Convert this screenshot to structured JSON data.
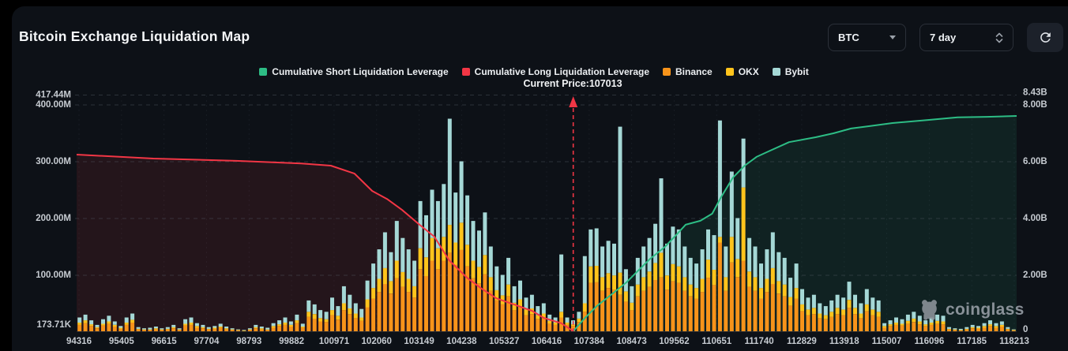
{
  "header": {
    "title": "Bitcoin Exchange Liquidation Map",
    "symbol_select": "BTC",
    "timeframe_select": "7 day"
  },
  "legend": [
    {
      "label": "Cumulative Short Liquidation Leverage",
      "color": "#2dbd85"
    },
    {
      "label": "Cumulative Long Liquidation Leverage",
      "color": "#f23645"
    },
    {
      "label": "Binance",
      "color": "#f7931a"
    },
    {
      "label": "OKX",
      "color": "#ffc41c"
    },
    {
      "label": "Bybit",
      "color": "#a5d8d6"
    }
  ],
  "annotation": {
    "current_price_label": "Current Price:107013",
    "current_price": 107013
  },
  "watermark": {
    "text": "coinglass"
  },
  "chart_data": {
    "type": "bar",
    "subtype": "stacked bars with cumulative line overlays",
    "title": "Bitcoin Exchange Liquidation Map",
    "x_ticks": [
      "94316",
      "95405",
      "96615",
      "97704",
      "98793",
      "99882",
      "100971",
      "102060",
      "103149",
      "104238",
      "105327",
      "106416",
      "107384",
      "108473",
      "109562",
      "110651",
      "111740",
      "112829",
      "113918",
      "115007",
      "116096",
      "117185",
      "118213"
    ],
    "y_axis_left": {
      "unit": "M (liquidation leverage per price level)",
      "labels": [
        {
          "label": "417.44M",
          "M": 417.44
        },
        {
          "label": "400.00M",
          "M": 400
        },
        {
          "label": "300.00M",
          "M": 300
        },
        {
          "label": "200.00M",
          "M": 200
        },
        {
          "label": "100.00M",
          "M": 100
        },
        {
          "label": "173.71K",
          "M": 0.17
        }
      ],
      "gridlines_M": [
        417.44,
        400,
        300,
        200,
        100
      ]
    },
    "y_axis_right": {
      "unit": "B (cumulative liquidation leverage)",
      "labels": [
        {
          "label": "8.43B",
          "B": 8.43
        },
        {
          "label": "8.00B",
          "B": 8
        },
        {
          "label": "6.00B",
          "B": 6
        },
        {
          "label": "4.00B",
          "B": 4
        },
        {
          "label": "2.00B",
          "B": 2
        },
        {
          "label": "0",
          "B": 0
        }
      ]
    },
    "bar_series_order": [
      "Binance",
      "OKX",
      "Bybit"
    ],
    "bars_M": [
      [
        12,
        4,
        9
      ],
      [
        15,
        5,
        10
      ],
      [
        10,
        3,
        7
      ],
      [
        6,
        2,
        4
      ],
      [
        11,
        3,
        8
      ],
      [
        14,
        4,
        10
      ],
      [
        9,
        3,
        6
      ],
      [
        5,
        2,
        3
      ],
      [
        12,
        4,
        9
      ],
      [
        16,
        5,
        11
      ],
      [
        4,
        1,
        3
      ],
      [
        3,
        1,
        2
      ],
      [
        3,
        1,
        3
      ],
      [
        4,
        2,
        3
      ],
      [
        3,
        1,
        2
      ],
      [
        4,
        1,
        3
      ],
      [
        6,
        2,
        4
      ],
      [
        3,
        1,
        2
      ],
      [
        11,
        3,
        8
      ],
      [
        12,
        4,
        9
      ],
      [
        7,
        3,
        5
      ],
      [
        6,
        2,
        4
      ],
      [
        4,
        1,
        3
      ],
      [
        5,
        2,
        3
      ],
      [
        7,
        2,
        5
      ],
      [
        4,
        2,
        3
      ],
      [
        3,
        1,
        2
      ],
      [
        2,
        1,
        1
      ],
      [
        1,
        1,
        1
      ],
      [
        3,
        1,
        2
      ],
      [
        6,
        2,
        4
      ],
      [
        4,
        2,
        3
      ],
      [
        3,
        1,
        3
      ],
      [
        7,
        3,
        5
      ],
      [
        10,
        3,
        7
      ],
      [
        12,
        4,
        9
      ],
      [
        9,
        3,
        6
      ],
      [
        15,
        5,
        10
      ],
      [
        7,
        2,
        5
      ],
      [
        26,
        9,
        20
      ],
      [
        23,
        8,
        17
      ],
      [
        18,
        6,
        14
      ],
      [
        17,
        5,
        13
      ],
      [
        29,
        9,
        22
      ],
      [
        21,
        7,
        17
      ],
      [
        38,
        12,
        30
      ],
      [
        31,
        10,
        24
      ],
      [
        24,
        8,
        18
      ],
      [
        19,
        6,
        15
      ],
      [
        43,
        14,
        33
      ],
      [
        58,
        19,
        43
      ],
      [
        70,
        23,
        52
      ],
      [
        84,
        28,
        63
      ],
      [
        67,
        22,
        51
      ],
      [
        94,
        31,
        70
      ],
      [
        79,
        26,
        60
      ],
      [
        70,
        23,
        52
      ],
      [
        60,
        20,
        45
      ],
      [
        110,
        37,
        83
      ],
      [
        98,
        33,
        74
      ],
      [
        125,
        40,
        85
      ],
      [
        110,
        37,
        83
      ],
      [
        125,
        42,
        93
      ],
      [
        139,
        49,
        187
      ],
      [
        118,
        39,
        88
      ],
      [
        144,
        48,
        108
      ],
      [
        115,
        38,
        87
      ],
      [
        94,
        31,
        70
      ],
      [
        85,
        29,
        64
      ],
      [
        101,
        34,
        75
      ],
      [
        72,
        24,
        54
      ],
      [
        55,
        18,
        42
      ],
      [
        48,
        16,
        36
      ],
      [
        62,
        21,
        47
      ],
      [
        38,
        13,
        29
      ],
      [
        43,
        14,
        33
      ],
      [
        29,
        10,
        21
      ],
      [
        31,
        10,
        24
      ],
      [
        22,
        7,
        16
      ],
      [
        24,
        8,
        18
      ],
      [
        14,
        5,
        11
      ],
      [
        12,
        4,
        9
      ],
      [
        25,
        10,
        101
      ],
      [
        12,
        4,
        9
      ],
      [
        10,
        3,
        7
      ],
      [
        17,
        6,
        12
      ],
      [
        35,
        15,
        83
      ],
      [
        86,
        29,
        65
      ],
      [
        87,
        29,
        66
      ],
      [
        72,
        24,
        54
      ],
      [
        77,
        26,
        57
      ],
      [
        74,
        25,
        56
      ],
      [
        65,
        39,
        257
      ],
      [
        53,
        18,
        39
      ],
      [
        38,
        13,
        29
      ],
      [
        62,
        21,
        47
      ],
      [
        72,
        24,
        54
      ],
      [
        79,
        27,
        59
      ],
      [
        91,
        30,
        69
      ],
      [
        96,
        43,
        131
      ],
      [
        74,
        25,
        56
      ],
      [
        89,
        30,
        66
      ],
      [
        86,
        29,
        65
      ],
      [
        72,
        24,
        54
      ],
      [
        62,
        21,
        47
      ],
      [
        58,
        19,
        43
      ],
      [
        70,
        23,
        52
      ],
      [
        95,
        32,
        53
      ],
      [
        82,
        27,
        61
      ],
      [
        157,
        10,
        205
      ],
      [
        72,
        24,
        54
      ],
      [
        122,
        45,
        115
      ],
      [
        96,
        32,
        72
      ],
      [
        125,
        129,
        86
      ],
      [
        79,
        27,
        59
      ],
      [
        72,
        24,
        54
      ],
      [
        58,
        19,
        43
      ],
      [
        70,
        23,
        52
      ],
      [
        84,
        28,
        63
      ],
      [
        67,
        22,
        51
      ],
      [
        62,
        21,
        47
      ],
      [
        46,
        15,
        34
      ],
      [
        58,
        19,
        43
      ],
      [
        36,
        12,
        27
      ],
      [
        29,
        10,
        21
      ],
      [
        31,
        11,
        23
      ],
      [
        24,
        8,
        18
      ],
      [
        22,
        7,
        16
      ],
      [
        26,
        9,
        20
      ],
      [
        31,
        11,
        23
      ],
      [
        29,
        10,
        21
      ],
      [
        42,
        14,
        32
      ],
      [
        31,
        11,
        23
      ],
      [
        24,
        8,
        18
      ],
      [
        36,
        12,
        27
      ],
      [
        29,
        10,
        21
      ],
      [
        26,
        9,
        20
      ],
      [
        7,
        3,
        5
      ],
      [
        10,
        3,
        7
      ],
      [
        12,
        4,
        9
      ],
      [
        11,
        3,
        8
      ],
      [
        14,
        5,
        11
      ],
      [
        17,
        6,
        12
      ],
      [
        13,
        5,
        10
      ],
      [
        10,
        3,
        7
      ],
      [
        12,
        4,
        9
      ],
      [
        14,
        5,
        11
      ],
      [
        13,
        5,
        10
      ],
      [
        4,
        1,
        3
      ],
      [
        3,
        1,
        2
      ],
      [
        2,
        1,
        2
      ],
      [
        4,
        1,
        3
      ],
      [
        6,
        2,
        4
      ],
      [
        5,
        2,
        3
      ],
      [
        7,
        3,
        5
      ],
      [
        10,
        3,
        7
      ],
      [
        7,
        3,
        5
      ],
      [
        9,
        3,
        6
      ],
      [
        4,
        1,
        3
      ],
      [
        2,
        1,
        1
      ]
    ],
    "lines": [
      {
        "name": "Cumulative Long Liquidation Leverage",
        "color": "#f23645",
        "axis": "right",
        "points_idx_B": [
          [
            0,
            6.25
          ],
          [
            13,
            6.11
          ],
          [
            27,
            6.03
          ],
          [
            38,
            5.94
          ],
          [
            43,
            5.86
          ],
          [
            47,
            5.58
          ],
          [
            50,
            4.97
          ],
          [
            52.5,
            4.69
          ],
          [
            55,
            4.31
          ],
          [
            58,
            3.78
          ],
          [
            60.5,
            3.36
          ],
          [
            63,
            2.53
          ],
          [
            66,
            1.92
          ],
          [
            68.5,
            1.53
          ],
          [
            71,
            1.19
          ],
          [
            74,
            0.97
          ],
          [
            77,
            0.75
          ],
          [
            79,
            0.5
          ],
          [
            82,
            0.31
          ],
          [
            84,
            0.03
          ]
        ]
      },
      {
        "name": "Cumulative Short Liquidation Leverage",
        "color": "#2dbd85",
        "axis": "right",
        "points_idx_B": [
          [
            84,
            0.03
          ],
          [
            86,
            0.5
          ],
          [
            88,
            0.92
          ],
          [
            90.5,
            1.33
          ],
          [
            93,
            1.75
          ],
          [
            95,
            2.17
          ],
          [
            97,
            2.58
          ],
          [
            99.5,
            3.0
          ],
          [
            101.5,
            3.44
          ],
          [
            103,
            3.78
          ],
          [
            105.5,
            3.92
          ],
          [
            107.5,
            4.17
          ],
          [
            109,
            4.75
          ],
          [
            111,
            5.44
          ],
          [
            113,
            5.86
          ],
          [
            115,
            6.17
          ],
          [
            117,
            6.36
          ],
          [
            120.5,
            6.69
          ],
          [
            125,
            6.86
          ],
          [
            128,
            7.0
          ],
          [
            131,
            7.17
          ],
          [
            134,
            7.25
          ],
          [
            138,
            7.36
          ],
          [
            144,
            7.47
          ],
          [
            149,
            7.56
          ],
          [
            154,
            7.58
          ],
          [
            159,
            7.61
          ]
        ]
      }
    ],
    "current_price_index": 84,
    "colors": {
      "binance": "#f7931a",
      "okx": "#ffc41c",
      "bybit": "#a5d8d6",
      "long_line": "#f23645",
      "short_line": "#2dbd85"
    },
    "legend_position": "top-center",
    "grid": "dashed horizontal"
  }
}
